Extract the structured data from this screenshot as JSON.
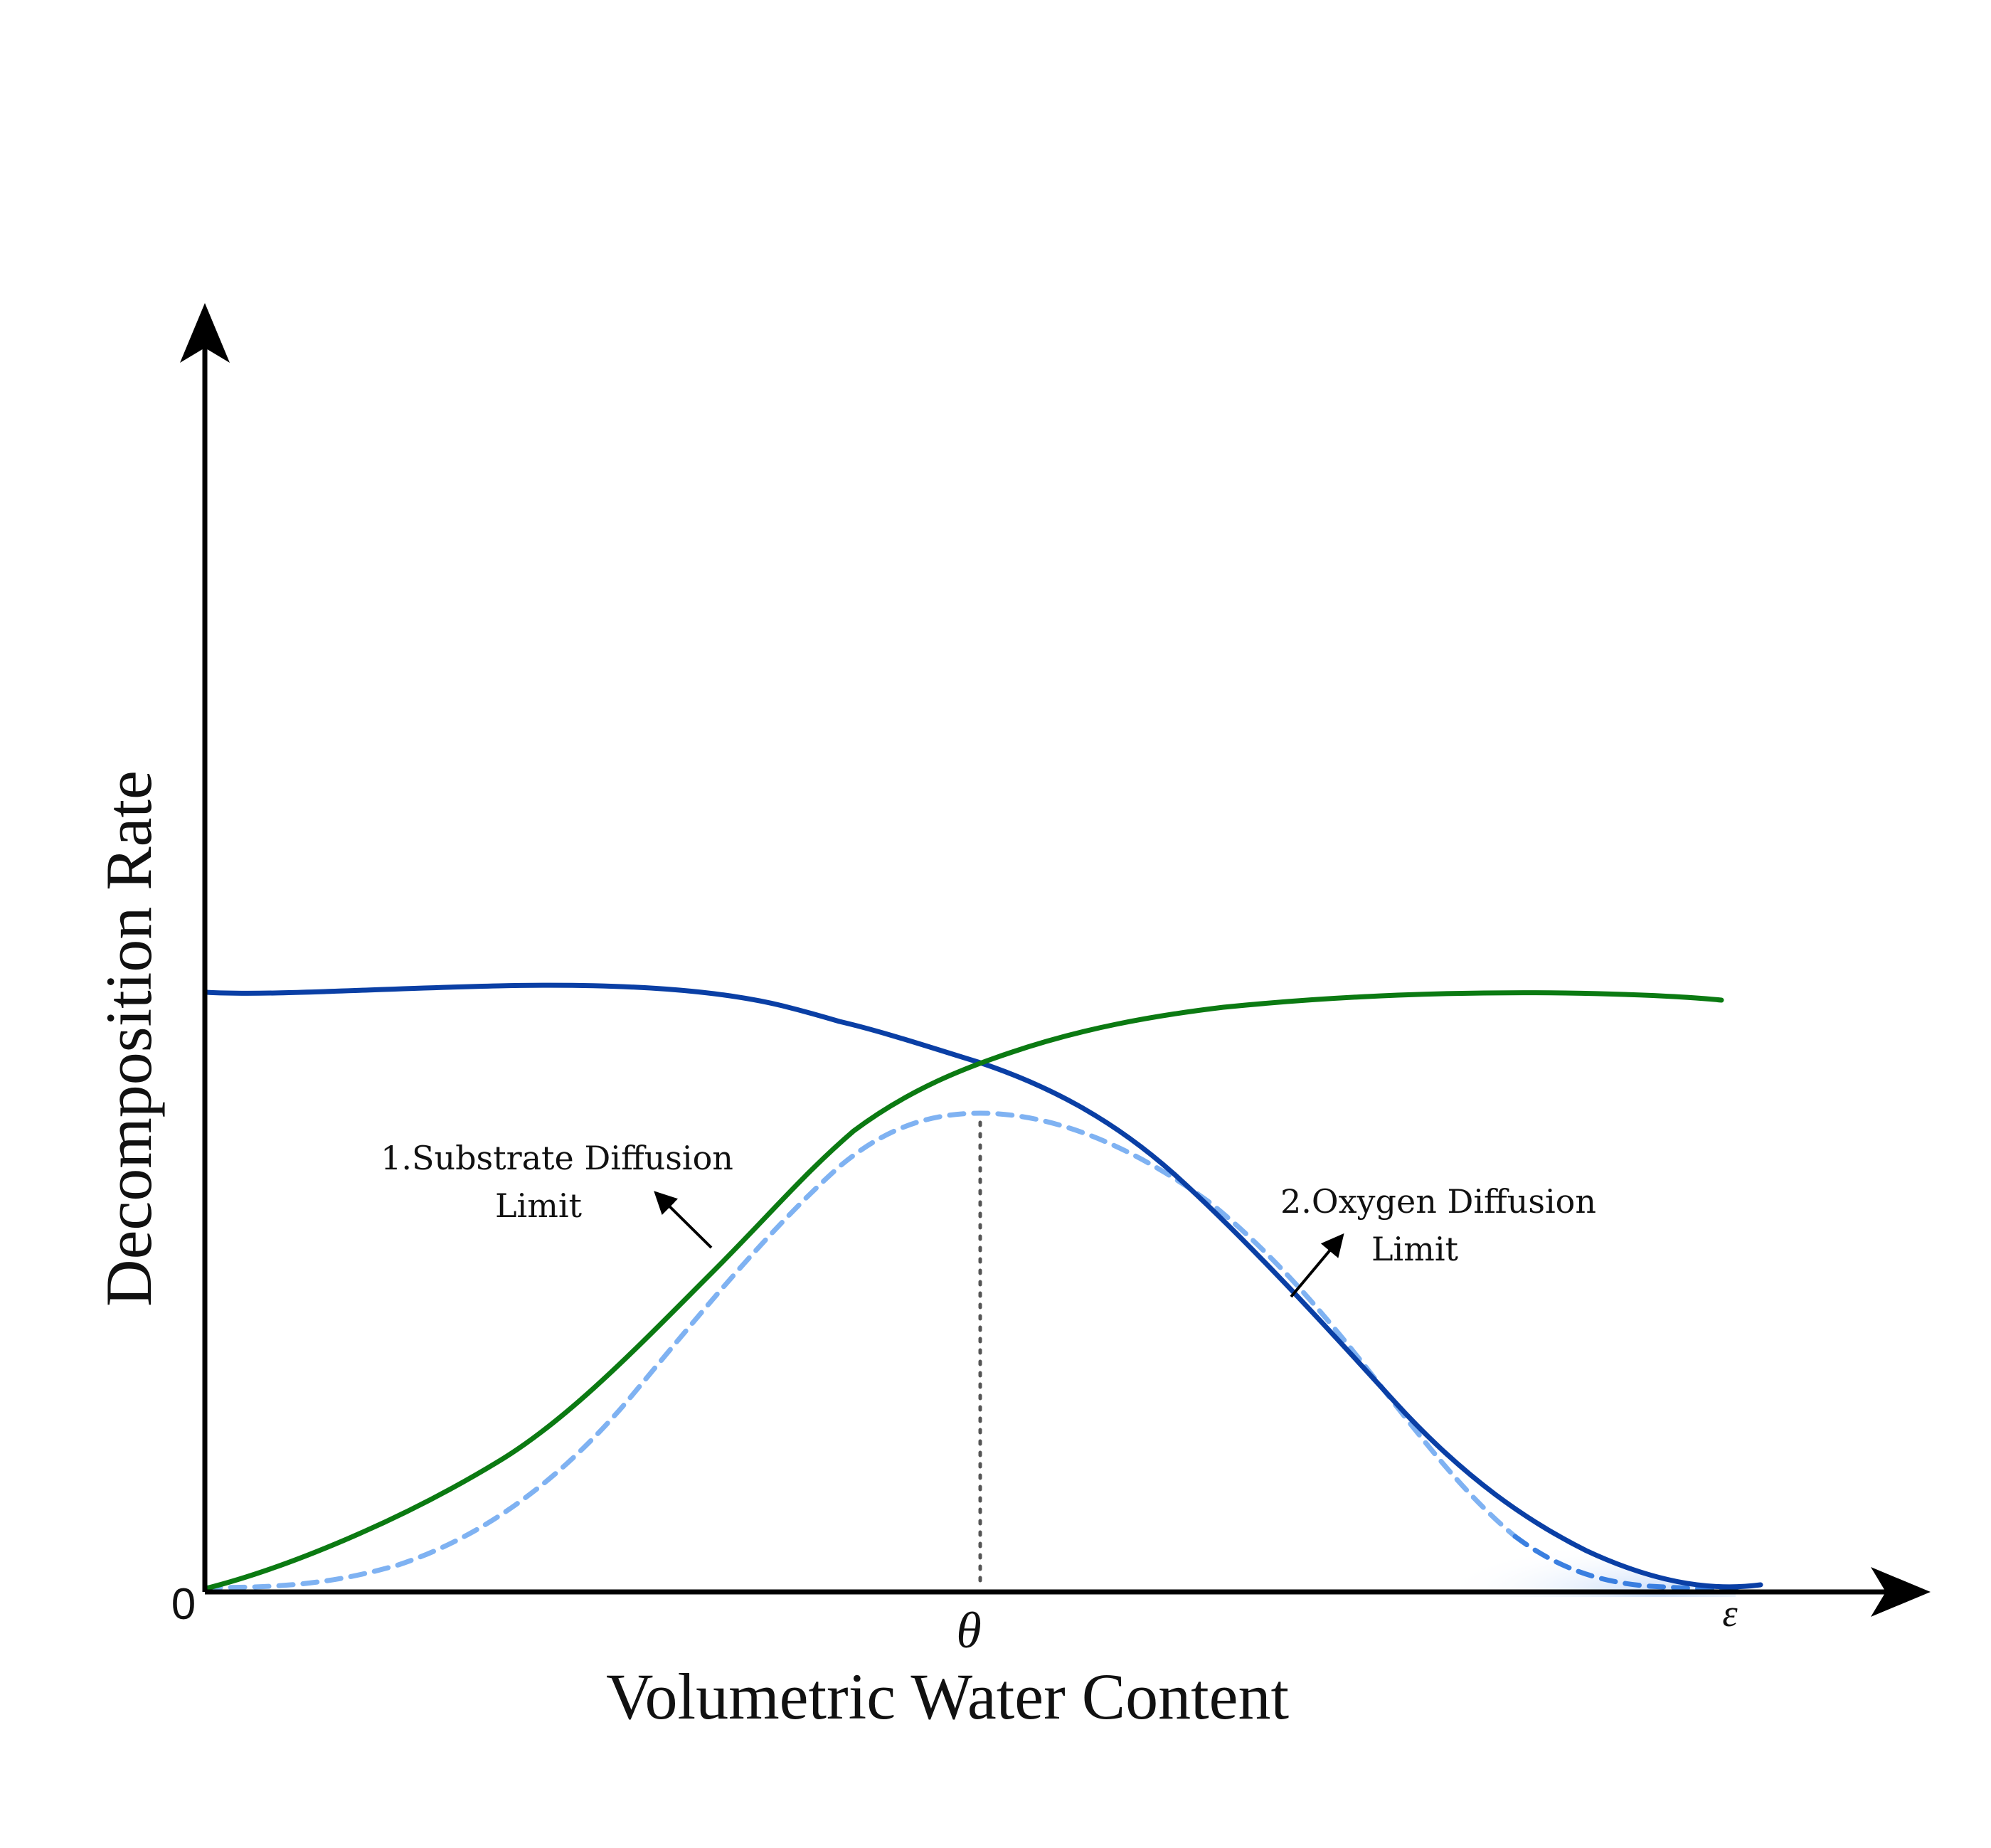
{
  "axes": {
    "x_label": "Volumetric Water Content",
    "y_label": "Decomposition Rate",
    "origin_label": "0",
    "x_ticks": [
      "θ",
      "ε"
    ]
  },
  "annotations": {
    "substrate_limit": {
      "line1": "1.Substrate Diffusion",
      "line2": "Limit"
    },
    "oxygen_limit": {
      "line1": "2.Oxygen Diffusion",
      "line2": "Limit"
    }
  },
  "colors": {
    "axis": "#000000",
    "oxygen_curve": "#0a3fa5",
    "substrate_curve": "#0b7a12",
    "combined_curve": "#7fb2f2",
    "combined_curve_tail": "#3a7fe0",
    "theta_line": "#555555"
  }
}
